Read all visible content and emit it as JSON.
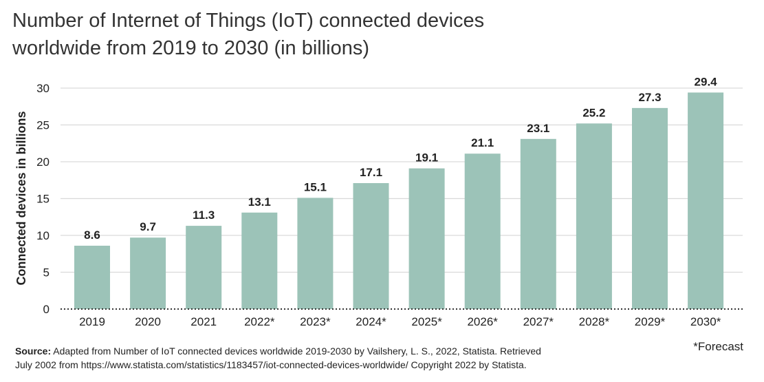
{
  "chart_data": {
    "type": "bar",
    "title_line1": "Number of Internet of Things (IoT) connected devices",
    "title_line2": "worldwide from 2019 to 2030 (in billions)",
    "ylabel": "Connected devices in billions",
    "xlabel": "",
    "categories": [
      "2019",
      "2020",
      "2021",
      "2022*",
      "2023*",
      "2024*",
      "2025*",
      "2026*",
      "2027*",
      "2028*",
      "2029*",
      "2030*"
    ],
    "values": [
      8.6,
      9.7,
      11.3,
      13.1,
      15.1,
      17.1,
      19.1,
      21.1,
      23.1,
      25.2,
      27.3,
      29.4
    ],
    "value_labels": [
      "8.6",
      "9.7",
      "11.3",
      "13.1",
      "15.1",
      "17.1",
      "19.1",
      "21.1",
      "23.1",
      "25.2",
      "27.3",
      "29.4"
    ],
    "ylim": [
      0,
      30
    ],
    "yticks": [
      0,
      5,
      10,
      15,
      20,
      25,
      30
    ],
    "ytick_labels": [
      "0",
      "5",
      "10",
      "15",
      "20",
      "25",
      "30"
    ],
    "grid": true,
    "bar_color": "#9cc3b8"
  },
  "footnote": {
    "source_label": "Source:",
    "source_text": " Adapted from Number of IoT connected devices worldwide 2019-2030 by Vailshery, L. S., 2022, Statista. Retrieved",
    "source_text_line2": "July 2002 from https://www.statista.com/statistics/1183457/iot-connected-devices-worldwide/ Copyright 2022 by Statista.",
    "forecast_note": "*Forecast"
  }
}
